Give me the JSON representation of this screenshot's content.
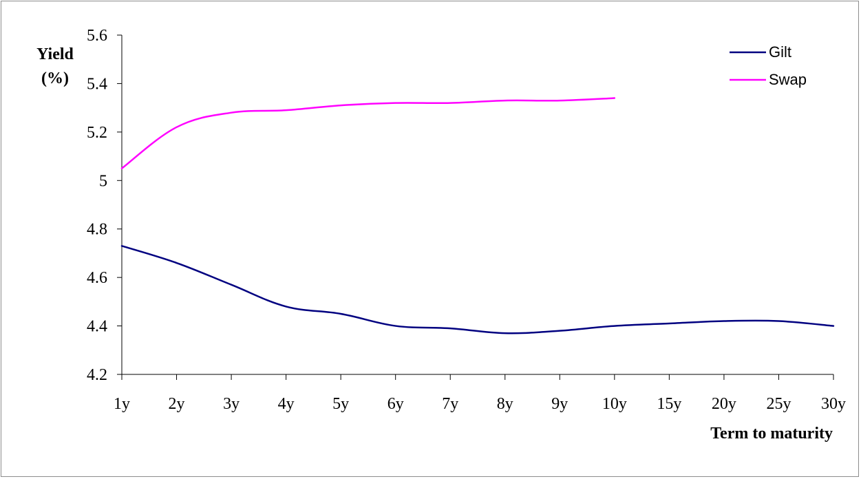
{
  "chart_data": {
    "type": "line",
    "title": "",
    "ylabel_lines": [
      "Yield",
      "(%)"
    ],
    "xlabel": "Term to maturity",
    "categories": [
      "1y",
      "2y",
      "3y",
      "4y",
      "5y",
      "6y",
      "7y",
      "8y",
      "9y",
      "10y",
      "15y",
      "20y",
      "25y",
      "30y"
    ],
    "ylim": [
      4.2,
      5.6
    ],
    "yticks": [
      5.6,
      5.4,
      5.2,
      5,
      4.8,
      4.6,
      4.4,
      4.2
    ],
    "ytick_labels": [
      "5.6",
      "5.4",
      "5.2",
      "5",
      "4.8",
      "4.6",
      "4.4",
      "4.2"
    ],
    "grid": false,
    "legend_position": "top-right",
    "series": [
      {
        "name": "Gilt",
        "color": "#000080",
        "values": [
          4.73,
          4.66,
          4.57,
          4.48,
          4.45,
          4.4,
          4.39,
          4.37,
          4.38,
          4.4,
          4.41,
          4.42,
          4.42,
          4.4
        ]
      },
      {
        "name": "Swap",
        "color": "#ff00ff",
        "values": [
          5.05,
          5.22,
          5.28,
          5.29,
          5.31,
          5.32,
          5.32,
          5.33,
          5.33,
          5.34,
          null,
          null,
          null,
          null
        ]
      }
    ]
  }
}
